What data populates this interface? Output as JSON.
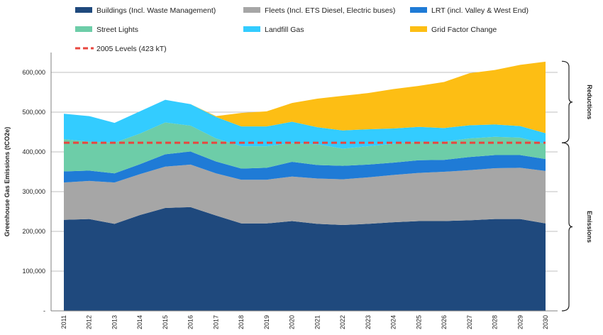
{
  "chart_data": {
    "type": "area",
    "stacked": true,
    "ylabel": "Greenhouse Gas Emissions (tCO2e)",
    "xlabel": "",
    "title": "",
    "x": [
      "2011",
      "2012",
      "2013",
      "2014",
      "2015",
      "2016",
      "2017",
      "2018",
      "2019",
      "2020",
      "2021",
      "2022",
      "2023",
      "2024",
      "2025",
      "2026",
      "2027",
      "2028",
      "2029",
      "2030"
    ],
    "ylim": [
      0,
      650000
    ],
    "yticks": [
      0,
      100000,
      200000,
      300000,
      400000,
      500000,
      600000
    ],
    "ytick_labels": [
      "-",
      "100,000",
      "200,000",
      "300,000",
      "400,000",
      "500,000",
      "600,000"
    ],
    "grid": true,
    "legend_position": "top",
    "series": [
      {
        "name": "Buildings (Incl. Waste Management)",
        "color": "#1f497d",
        "values": [
          229000,
          231000,
          219000,
          241000,
          259000,
          261000,
          240000,
          220000,
          220000,
          226000,
          219000,
          216000,
          219000,
          223000,
          226000,
          226000,
          228000,
          231000,
          231000,
          220000
        ]
      },
      {
        "name": "Fleets (Incl. ETS Diesel, Electric buses)",
        "color": "#a6a6a6",
        "values": [
          94000,
          96000,
          104000,
          103000,
          104000,
          107000,
          106000,
          110000,
          110000,
          112000,
          114000,
          115000,
          117000,
          119000,
          121000,
          124000,
          126000,
          128000,
          129000,
          132000
        ]
      },
      {
        "name": "LRT (incl. Valley & West End)",
        "color": "#1f7bd6",
        "values": [
          28000,
          26000,
          23000,
          25000,
          31000,
          33000,
          30000,
          28000,
          30000,
          37000,
          34000,
          34000,
          32000,
          31000,
          32000,
          30000,
          33000,
          33000,
          32000,
          30000
        ]
      },
      {
        "name": "Street Lights",
        "color": "#6dcda8",
        "values": [
          81000,
          73000,
          77000,
          77000,
          80000,
          65000,
          58000,
          56000,
          54000,
          47000,
          52000,
          43000,
          46000,
          47000,
          47000,
          46000,
          47000,
          46000,
          44000,
          38000
        ]
      },
      {
        "name": "Landfill Gas",
        "color": "#33ccff",
        "values": [
          64000,
          64000,
          50000,
          56000,
          57000,
          54000,
          54000,
          50000,
          50000,
          54000,
          43000,
          46000,
          43000,
          39000,
          37000,
          34000,
          33000,
          31000,
          29000,
          27000
        ]
      },
      {
        "name": "Grid Factor Change",
        "color": "#fdbe14",
        "values": [
          0,
          0,
          0,
          0,
          0,
          0,
          2000,
          34000,
          38000,
          47000,
          72000,
          87000,
          91000,
          99000,
          103000,
          116000,
          131000,
          137000,
          154000,
          180000
        ]
      }
    ],
    "reference_line": {
      "name": "2005 Levels (423 kT)",
      "value": 423000,
      "color": "#e8463e"
    },
    "brackets": [
      {
        "label": "Reductions",
        "from": 423000,
        "to": 628000
      },
      {
        "label": "Emissions",
        "from": 0,
        "to": 423000
      }
    ]
  }
}
